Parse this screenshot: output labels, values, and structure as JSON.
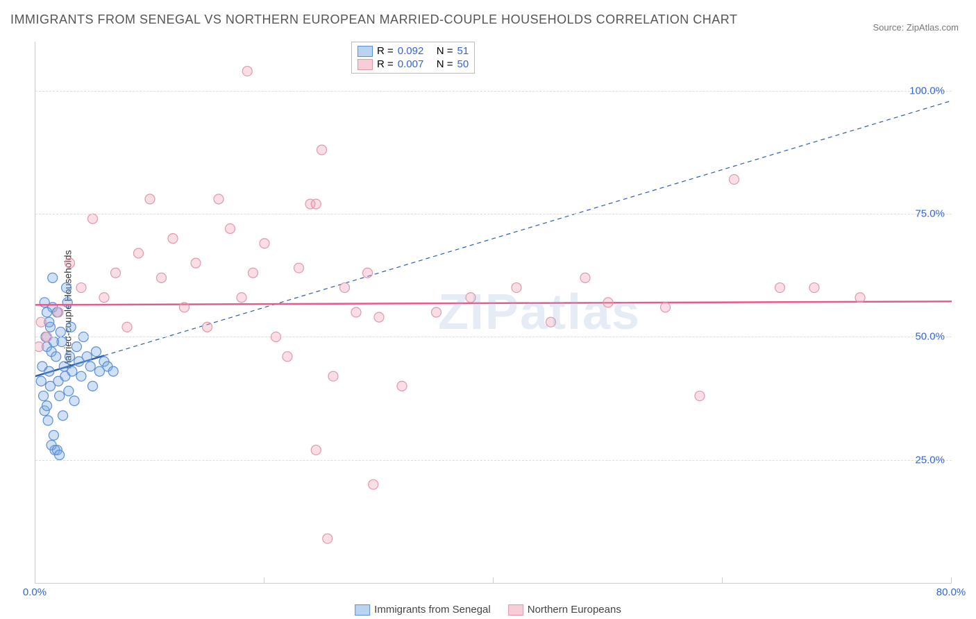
{
  "title": "IMMIGRANTS FROM SENEGAL VS NORTHERN EUROPEAN MARRIED-COUPLE HOUSEHOLDS CORRELATION CHART",
  "source_label": "Source: ZipAtlas.com",
  "watermark": "ZIPatlas",
  "ylabel": "Married-couple Households",
  "chart": {
    "type": "scatter",
    "xlim": [
      0,
      80
    ],
    "ylim": [
      0,
      110
    ],
    "yticks": [
      {
        "value": 25,
        "label": "25.0%"
      },
      {
        "value": 50,
        "label": "50.0%"
      },
      {
        "value": 75,
        "label": "75.0%"
      },
      {
        "value": 100,
        "label": "100.0%"
      }
    ],
    "xticks": [
      {
        "value": 0,
        "label": "0.0%"
      },
      {
        "value": 20,
        "label": ""
      },
      {
        "value": 40,
        "label": ""
      },
      {
        "value": 60,
        "label": ""
      },
      {
        "value": 80,
        "label": "80.0%"
      }
    ],
    "grid_color": "#dddddd",
    "background_color": "#ffffff",
    "marker_radius": 7,
    "marker_stroke_width": 1.2,
    "series": [
      {
        "name": "Immigrants from Senegal",
        "fill": "rgba(120,170,230,0.35)",
        "stroke": "#5b8fd6",
        "swatch_fill": "#b9d4f0",
        "swatch_border": "#5b8fd6",
        "R": "0.092",
        "N": "51",
        "regression": {
          "x1": 0,
          "y1": 42,
          "x2": 80,
          "y2": 98,
          "solid_x2": 6,
          "solid_y2": 46.2,
          "color": "#2a5db0",
          "width": 2.5
        },
        "points": [
          [
            0.5,
            41
          ],
          [
            0.6,
            44
          ],
          [
            0.7,
            38
          ],
          [
            0.8,
            35
          ],
          [
            0.9,
            50
          ],
          [
            1.0,
            48
          ],
          [
            1.0,
            36
          ],
          [
            1.1,
            33
          ],
          [
            1.2,
            43
          ],
          [
            1.3,
            52
          ],
          [
            1.3,
            40
          ],
          [
            1.4,
            47
          ],
          [
            1.5,
            56
          ],
          [
            1.5,
            62
          ],
          [
            1.6,
            30
          ],
          [
            1.7,
            27
          ],
          [
            1.8,
            46
          ],
          [
            1.9,
            55
          ],
          [
            2.0,
            41
          ],
          [
            2.1,
            38
          ],
          [
            2.2,
            51
          ],
          [
            2.3,
            49
          ],
          [
            2.4,
            34
          ],
          [
            2.5,
            44
          ],
          [
            2.6,
            42
          ],
          [
            2.7,
            60
          ],
          [
            2.8,
            57
          ],
          [
            2.9,
            39
          ],
          [
            3.0,
            46
          ],
          [
            3.1,
            52
          ],
          [
            3.2,
            43
          ],
          [
            3.4,
            37
          ],
          [
            3.6,
            48
          ],
          [
            3.8,
            45
          ],
          [
            4.0,
            42
          ],
          [
            4.2,
            50
          ],
          [
            4.5,
            46
          ],
          [
            4.8,
            44
          ],
          [
            5.0,
            40
          ],
          [
            5.3,
            47
          ],
          [
            5.6,
            43
          ],
          [
            6.0,
            45
          ],
          [
            6.3,
            44
          ],
          [
            6.8,
            43
          ],
          [
            0.8,
            57
          ],
          [
            1.0,
            55
          ],
          [
            1.2,
            53
          ],
          [
            1.6,
            49
          ],
          [
            1.4,
            28
          ],
          [
            1.9,
            27
          ],
          [
            2.1,
            26
          ]
        ]
      },
      {
        "name": "Northern Europeans",
        "fill": "rgba(240,160,180,0.35)",
        "stroke": "#e198ab",
        "swatch_fill": "#f7cdd8",
        "swatch_border": "#e198ab",
        "R": "0.007",
        "N": "50",
        "regression": {
          "x1": 0,
          "y1": 56.5,
          "x2": 80,
          "y2": 57.2,
          "solid_x2": 80,
          "solid_y2": 57.2,
          "color": "#e75a8a",
          "width": 2.5
        },
        "points": [
          [
            0.5,
            53
          ],
          [
            1.0,
            50
          ],
          [
            2.0,
            55
          ],
          [
            3.0,
            65
          ],
          [
            4.0,
            60
          ],
          [
            5.0,
            74
          ],
          [
            6.0,
            58
          ],
          [
            7.0,
            63
          ],
          [
            8.0,
            52
          ],
          [
            9.0,
            67
          ],
          [
            10.0,
            78
          ],
          [
            11.0,
            62
          ],
          [
            12.0,
            70
          ],
          [
            13.0,
            56
          ],
          [
            14.0,
            65
          ],
          [
            15.0,
            52
          ],
          [
            16.0,
            78
          ],
          [
            17.0,
            72
          ],
          [
            18.0,
            58
          ],
          [
            18.5,
            104
          ],
          [
            19.0,
            63
          ],
          [
            20.0,
            69
          ],
          [
            21.0,
            50
          ],
          [
            22.0,
            46
          ],
          [
            23.0,
            64
          ],
          [
            24.0,
            77
          ],
          [
            25.0,
            88
          ],
          [
            26.0,
            42
          ],
          [
            27.0,
            60
          ],
          [
            28.0,
            55
          ],
          [
            24.5,
            27
          ],
          [
            25.5,
            9
          ],
          [
            29.0,
            63
          ],
          [
            29.5,
            20
          ],
          [
            30.0,
            54
          ],
          [
            32.0,
            40
          ],
          [
            35.0,
            55
          ],
          [
            38.0,
            58
          ],
          [
            42.0,
            60
          ],
          [
            45.0,
            53
          ],
          [
            48.0,
            62
          ],
          [
            50.0,
            57
          ],
          [
            55.0,
            56
          ],
          [
            58.0,
            38
          ],
          [
            61.0,
            82
          ],
          [
            65.0,
            60
          ],
          [
            68.0,
            60
          ],
          [
            72.0,
            58
          ],
          [
            24.5,
            77
          ],
          [
            0.3,
            48
          ]
        ]
      }
    ]
  },
  "legend_top": {
    "r_label": "R =",
    "n_label": "N ="
  },
  "legend_bottom": {
    "series1": "Immigrants from Senegal",
    "series2": "Northern Europeans"
  }
}
